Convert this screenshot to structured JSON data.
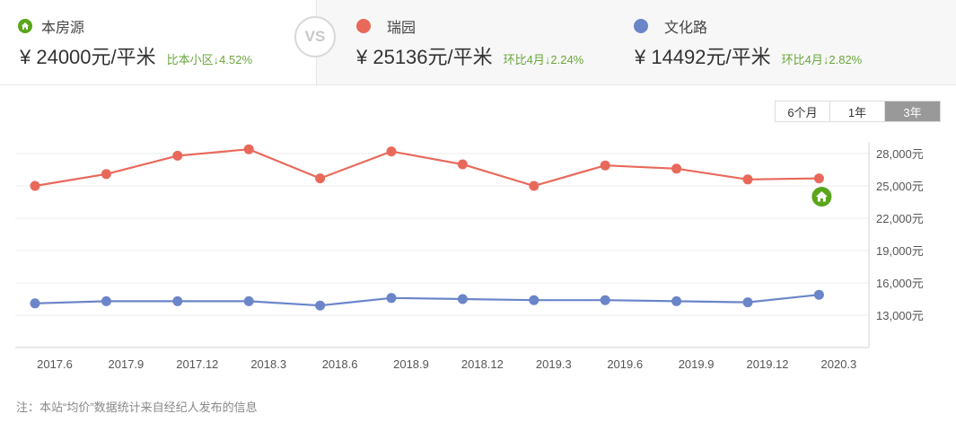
{
  "subject": {
    "label": "本房源",
    "icon": "home-icon",
    "price": "¥ 24000元/平米",
    "change": "比本小区↓4.52%"
  },
  "vs_label": "VS",
  "compare": [
    {
      "label": "瑞园",
      "price": "¥ 25136元/平米",
      "change": "环比4月↓2.24%",
      "color": "#e8695a"
    },
    {
      "label": "文化路",
      "price": "¥ 14492元/平米",
      "change": "环比4月↓2.82%",
      "color": "#6b85c9"
    }
  ],
  "range_tabs": [
    {
      "label": "6个月",
      "active": false
    },
    {
      "label": "1年",
      "active": false
    },
    {
      "label": "3年",
      "active": true
    }
  ],
  "note": "注：本站“均价”数据统计来自经纪人发布的信息",
  "chart_data": {
    "type": "line",
    "title": "",
    "xlabel": "",
    "ylabel": "",
    "categories": [
      "2017.6",
      "2017.9",
      "2017.12",
      "2018.3",
      "2018.6",
      "2018.9",
      "2018.12",
      "2019.3",
      "2019.6",
      "2019.9",
      "2019.12",
      "2020.3"
    ],
    "series": [
      {
        "name": "瑞园",
        "color": "#e8695a",
        "values": [
          25000,
          26100,
          27800,
          28400,
          25700,
          28200,
          27000,
          25000,
          26900,
          26600,
          25600,
          25700
        ]
      },
      {
        "name": "文化路",
        "color": "#6b85c9",
        "values": [
          14100,
          14300,
          14300,
          14300,
          13900,
          14600,
          14500,
          14400,
          14400,
          14300,
          14200,
          14900
        ]
      }
    ],
    "marker": {
      "name": "本房源",
      "category": "2020.3",
      "value": 24000,
      "color": "#5aa51a"
    },
    "y_ticks": [
      "28,000元",
      "25,000元",
      "22,000元",
      "19,000元",
      "16,000元",
      "13,000元"
    ],
    "y_tick_values": [
      28000,
      25000,
      22000,
      19000,
      16000,
      13000
    ],
    "ylim": [
      10000,
      29500
    ],
    "axis_position": "right",
    "grid": true,
    "legend": "top-cards"
  }
}
